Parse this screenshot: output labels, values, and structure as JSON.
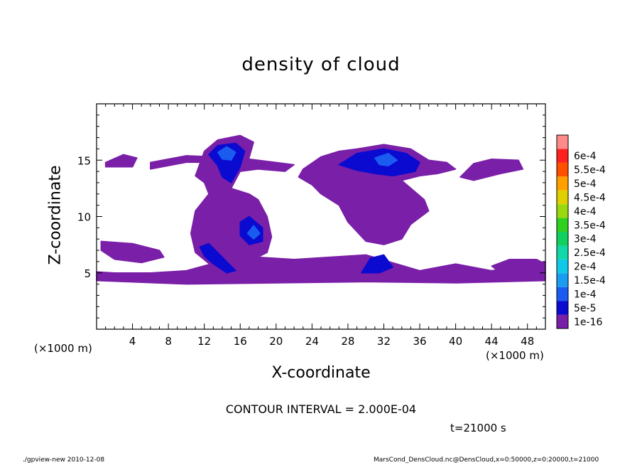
{
  "chart_data": {
    "type": "heatmap",
    "title": "density of cloud",
    "xlabel": "X-coordinate",
    "ylabel": "Z-coordinate",
    "x_unit_left": "(×1000 m)",
    "x_unit_right": "(×1000 m)",
    "xlim": [
      0,
      50
    ],
    "ylim": [
      0,
      20
    ],
    "x_ticks": [
      4,
      8,
      12,
      16,
      20,
      24,
      28,
      32,
      36,
      40,
      44,
      48
    ],
    "y_ticks": [
      5,
      10,
      15
    ],
    "colorbar": {
      "levels": [
        "1e-16",
        "5e-5",
        "1e-4",
        "1.5e-4",
        "2e-4",
        "2.5e-4",
        "3e-4",
        "3.5e-4",
        "4e-4",
        "4.5e-4",
        "5e-4",
        "5.5e-4",
        "6e-4"
      ],
      "colors": [
        "#7a1fa8",
        "#0a0ad0",
        "#1a5cf0",
        "#1a9cf0",
        "#10c8e8",
        "#10d8a8",
        "#10d060",
        "#30d020",
        "#9cd810",
        "#e0d000",
        "#ffa000",
        "#ff5000",
        "#ff2020",
        "#ff8a8a"
      ]
    },
    "regions": [
      {
        "level": 0,
        "polygon": [
          [
            0,
            4.3
          ],
          [
            10,
            4.0
          ],
          [
            20,
            4.1
          ],
          [
            30,
            4.2
          ],
          [
            40,
            4.1
          ],
          [
            50,
            4.3
          ],
          [
            50,
            6.0
          ],
          [
            44,
            5.2
          ],
          [
            40,
            5.8
          ],
          [
            36,
            5.2
          ],
          [
            30,
            6.6
          ],
          [
            22,
            6.2
          ],
          [
            16,
            6.5
          ],
          [
            10,
            5.2
          ],
          [
            6,
            5.0
          ],
          [
            2,
            5.0
          ],
          [
            0,
            5.1
          ]
        ]
      },
      {
        "level": 0,
        "polygon": [
          [
            0.5,
            7.8
          ],
          [
            4,
            7.6
          ],
          [
            7,
            7.0
          ],
          [
            7.5,
            6.4
          ],
          [
            5,
            5.9
          ],
          [
            2,
            6.2
          ],
          [
            0.5,
            7.0
          ]
        ]
      },
      {
        "level": 0,
        "polygon": [
          [
            11,
            13.6
          ],
          [
            12,
            15.8
          ],
          [
            13.5,
            16.8
          ],
          [
            16,
            17.2
          ],
          [
            17.5,
            16.6
          ],
          [
            17,
            15.2
          ],
          [
            16,
            14.0
          ],
          [
            15,
            12.5
          ],
          [
            17,
            12.0
          ],
          [
            18,
            11.5
          ],
          [
            19,
            10.0
          ],
          [
            19.5,
            8.2
          ],
          [
            19,
            6.8
          ],
          [
            17,
            6.0
          ],
          [
            15,
            5.3
          ],
          [
            13,
            5.5
          ],
          [
            11,
            6.8
          ],
          [
            10.5,
            8.5
          ],
          [
            11,
            10.5
          ],
          [
            12.5,
            12.0
          ],
          [
            12,
            13.0
          ]
        ]
      },
      {
        "level": 0,
        "polygon": [
          [
            6,
            14.2
          ],
          [
            10,
            14.8
          ],
          [
            14,
            14.8
          ],
          [
            16,
            14.0
          ],
          [
            18,
            14.2
          ],
          [
            21,
            14.0
          ],
          [
            22,
            14.6
          ],
          [
            20,
            14.8
          ],
          [
            16,
            15.2
          ],
          [
            10,
            15.4
          ],
          [
            6,
            14.8
          ]
        ]
      },
      {
        "level": 0,
        "polygon": [
          [
            1,
            14.8
          ],
          [
            3,
            15.5
          ],
          [
            4.5,
            15.2
          ],
          [
            4,
            14.4
          ],
          [
            1,
            14.4
          ]
        ]
      },
      {
        "level": 0,
        "polygon": [
          [
            22.5,
            13.5
          ],
          [
            23,
            14.2
          ],
          [
            25,
            15.3
          ],
          [
            27,
            15.8
          ],
          [
            29,
            16.0
          ],
          [
            32,
            16.4
          ],
          [
            35,
            16.0
          ],
          [
            37,
            15.0
          ],
          [
            39,
            14.8
          ],
          [
            40,
            14.2
          ],
          [
            38,
            13.8
          ],
          [
            36,
            13.6
          ],
          [
            34,
            13.2
          ],
          [
            36.5,
            11.5
          ],
          [
            37,
            10.5
          ],
          [
            35,
            9.3
          ],
          [
            34,
            8.0
          ],
          [
            32,
            7.5
          ],
          [
            30,
            7.8
          ],
          [
            28,
            9.5
          ],
          [
            27,
            11.0
          ],
          [
            25,
            12.0
          ],
          [
            24,
            12.8
          ]
        ]
      },
      {
        "level": 0,
        "polygon": [
          [
            40.5,
            13.5
          ],
          [
            42,
            14.7
          ],
          [
            44,
            15.1
          ],
          [
            47,
            15.0
          ],
          [
            47.5,
            14.2
          ],
          [
            45,
            13.8
          ],
          [
            42,
            13.2
          ]
        ]
      },
      {
        "level": 0,
        "polygon": [
          [
            44,
            5.6
          ],
          [
            46,
            6.2
          ],
          [
            49,
            6.2
          ],
          [
            50,
            5.8
          ],
          [
            48,
            5.0
          ],
          [
            45,
            5.0
          ]
        ]
      },
      {
        "level": 1,
        "polygon": [
          [
            12.5,
            15.5
          ],
          [
            13.5,
            16.3
          ],
          [
            15.5,
            16.5
          ],
          [
            16.5,
            15.8
          ],
          [
            16,
            14.4
          ],
          [
            15,
            13.0
          ],
          [
            14,
            13.5
          ],
          [
            13.5,
            14.5
          ]
        ]
      },
      {
        "level": 1,
        "polygon": [
          [
            16,
            9.5
          ],
          [
            17,
            10.0
          ],
          [
            18.5,
            9.0
          ],
          [
            18.5,
            7.8
          ],
          [
            17,
            7.5
          ],
          [
            16,
            8.3
          ]
        ]
      },
      {
        "level": 1,
        "polygon": [
          [
            11.5,
            7.3
          ],
          [
            12.5,
            7.6
          ],
          [
            13.5,
            6.8
          ],
          [
            14.5,
            6.0
          ],
          [
            15.5,
            5.2
          ],
          [
            14.5,
            5.0
          ],
          [
            13,
            5.8
          ],
          [
            12,
            6.5
          ]
        ]
      },
      {
        "level": 1,
        "polygon": [
          [
            27,
            14.6
          ],
          [
            29,
            15.6
          ],
          [
            32,
            16.0
          ],
          [
            34.5,
            15.6
          ],
          [
            36,
            14.8
          ],
          [
            35.5,
            14.0
          ],
          [
            33,
            13.6
          ],
          [
            31,
            13.8
          ],
          [
            29,
            14.1
          ]
        ]
      },
      {
        "level": 1,
        "polygon": [
          [
            29.5,
            5.0
          ],
          [
            30.5,
            6.3
          ],
          [
            32,
            6.6
          ],
          [
            33,
            5.5
          ],
          [
            31.5,
            5.0
          ]
        ]
      },
      {
        "level": 2,
        "polygon": [
          [
            13.5,
            15.7
          ],
          [
            14.5,
            16.2
          ],
          [
            15.5,
            15.7
          ],
          [
            15,
            15.0
          ],
          [
            14,
            15.1
          ]
        ]
      },
      {
        "level": 2,
        "polygon": [
          [
            31,
            15.2
          ],
          [
            32.5,
            15.6
          ],
          [
            33.5,
            15.0
          ],
          [
            32.5,
            14.5
          ],
          [
            31.5,
            14.6
          ]
        ]
      },
      {
        "level": 2,
        "polygon": [
          [
            16.8,
            8.5
          ],
          [
            17.5,
            9.2
          ],
          [
            18.2,
            8.5
          ],
          [
            17.5,
            8.0
          ]
        ]
      }
    ]
  },
  "contour_interval": "CONTOUR INTERVAL = 2.000E-04",
  "time_label": "t=21000 s",
  "footer_left": "./gpview-new   2010-12-08",
  "footer_right": "MarsCond_DensCloud.nc@DensCloud,x=0:50000,z=0:20000,t=21000"
}
